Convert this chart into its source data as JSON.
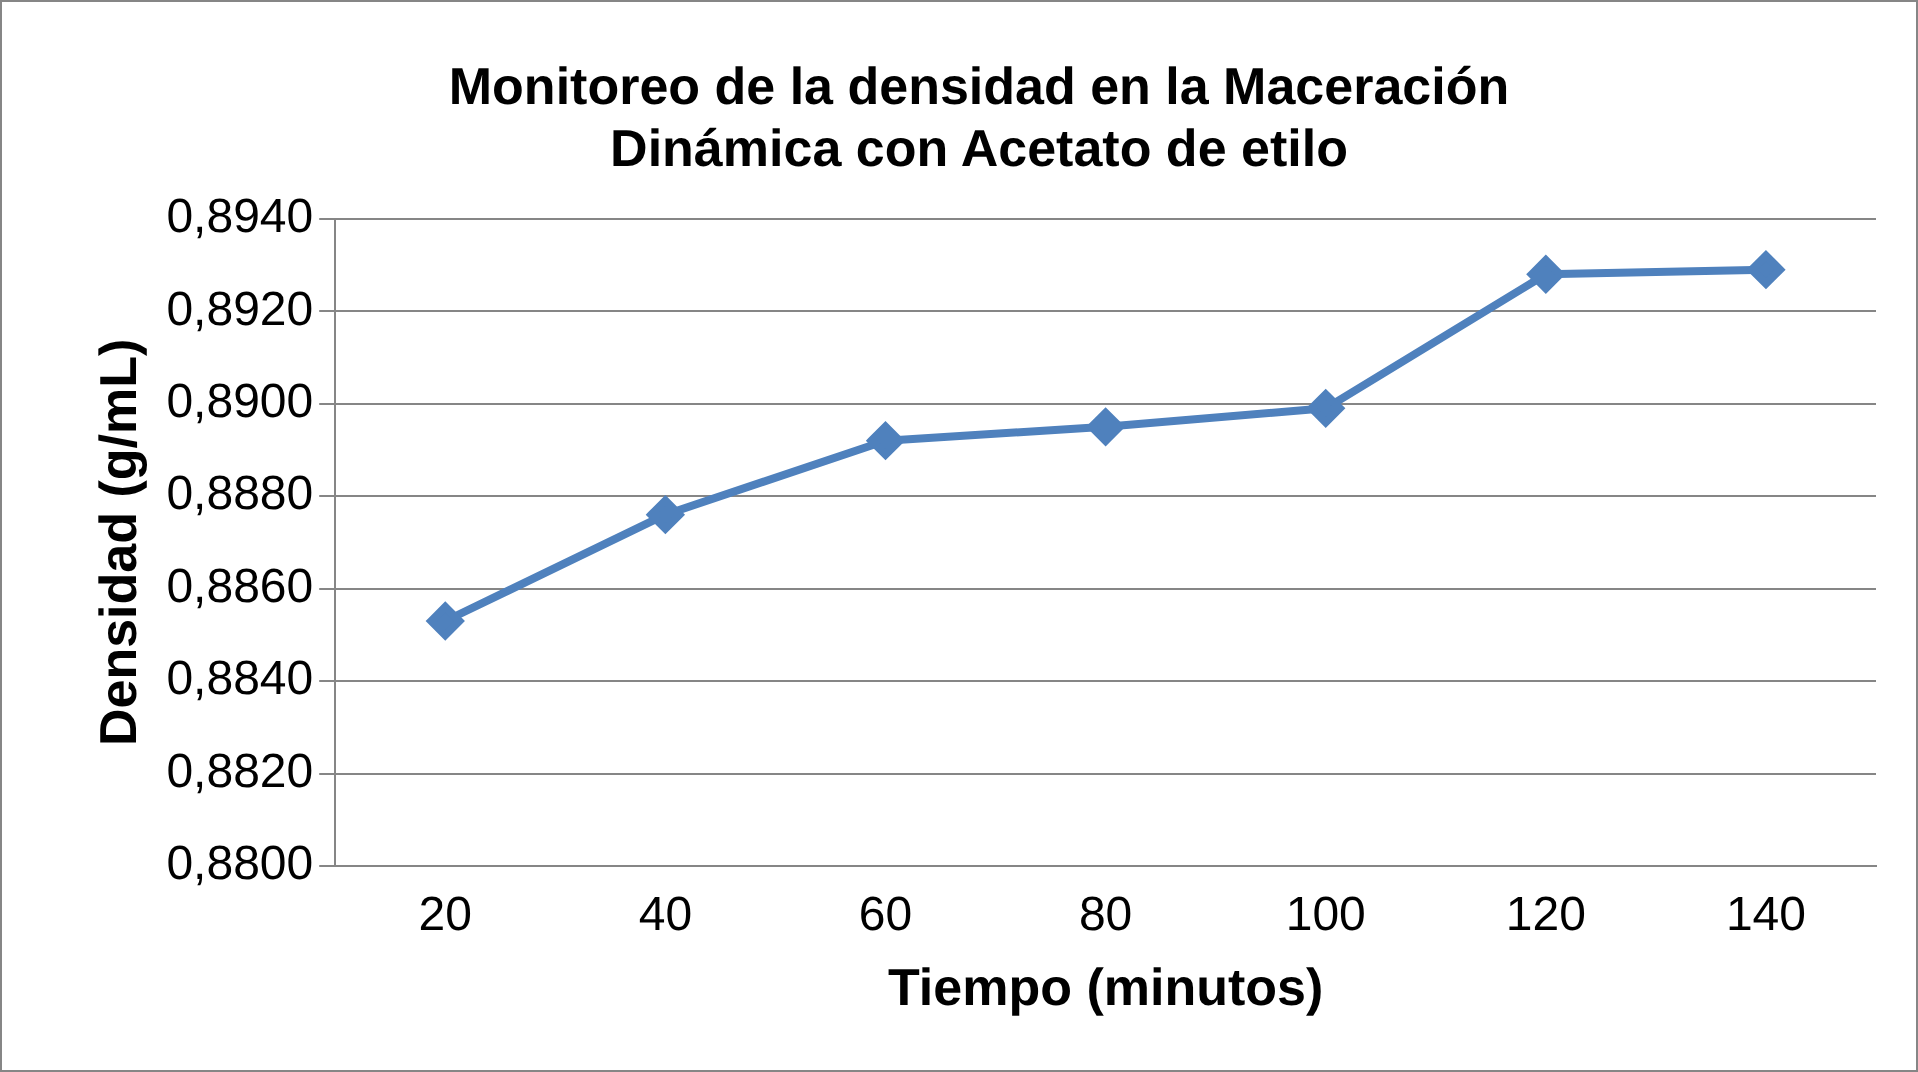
{
  "chart_data": {
    "type": "line",
    "title": "Monitoreo de la densidad en la Maceración Dinámica con Acetato de etilo",
    "xlabel": "Tiempo (minutos)",
    "ylabel": "Densidad (g/mL)",
    "categories": [
      "20",
      "40",
      "60",
      "80",
      "100",
      "120",
      "140"
    ],
    "series": [
      {
        "color": "#4f81bd",
        "values": [
          0.8853,
          0.8876,
          0.8892,
          0.8895,
          0.8899,
          0.8928,
          0.8929
        ]
      }
    ],
    "ylim": [
      0.88,
      0.894
    ],
    "yticks": [
      {
        "value": 0.88,
        "label": "0,8800"
      },
      {
        "value": 0.882,
        "label": "0,8820"
      },
      {
        "value": 0.884,
        "label": "0,8840"
      },
      {
        "value": 0.886,
        "label": "0,8860"
      },
      {
        "value": 0.888,
        "label": "0,8880"
      },
      {
        "value": 0.89,
        "label": "0,8900"
      },
      {
        "value": 0.892,
        "label": "0,8920"
      },
      {
        "value": 0.894,
        "label": "0,8940"
      }
    ],
    "grid": "y",
    "legend": false,
    "marker": "diamond",
    "line_style": "solid"
  }
}
